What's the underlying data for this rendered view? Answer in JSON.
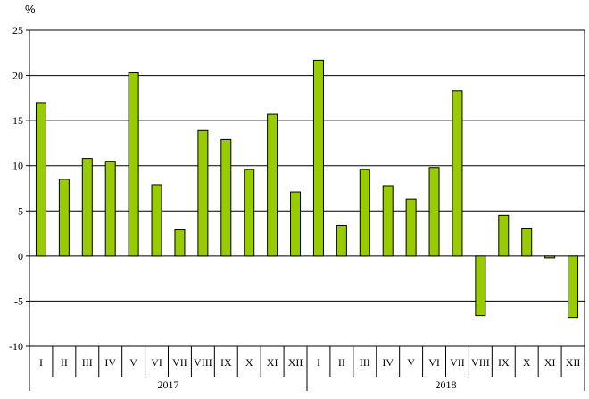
{
  "chart_data": {
    "type": "bar",
    "ylabel": "%",
    "ylim": [
      -10,
      25
    ],
    "yticks": [
      -10,
      -5,
      0,
      5,
      10,
      15,
      20,
      25
    ],
    "grid": true,
    "colors": {
      "bar_fill": "#99CC00",
      "bar_stroke": "#000000",
      "grid": "#000000"
    },
    "groups": [
      {
        "label": "2017",
        "categories": [
          "I",
          "II",
          "III",
          "IV",
          "V",
          "VI",
          "VII",
          "VIII",
          "IX",
          "X",
          "XI",
          "XII"
        ],
        "values": [
          17.0,
          8.5,
          10.8,
          10.5,
          20.3,
          7.9,
          2.9,
          13.9,
          12.9,
          9.6,
          15.7,
          7.1
        ]
      },
      {
        "label": "2018",
        "categories": [
          "I",
          "II",
          "III",
          "IV",
          "V",
          "VI",
          "VII",
          "VIII",
          "IX",
          "X",
          "XI",
          "XII"
        ],
        "values": [
          21.7,
          3.4,
          9.6,
          7.8,
          6.3,
          9.8,
          18.3,
          -6.6,
          4.5,
          3.1,
          -0.2,
          -6.8
        ]
      }
    ]
  }
}
